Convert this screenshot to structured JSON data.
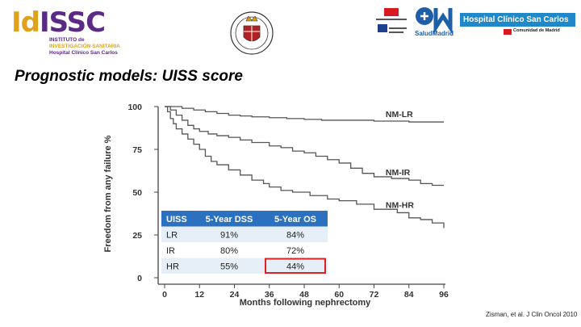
{
  "header": {
    "idissc": {
      "mark_a": "Id",
      "mark_b": "ISSC",
      "line1": "INSTITUTO de",
      "line2": "INVESTIGACIÓN SANITARIA",
      "line3": "Hospital Clínico San Carlos"
    },
    "madrid": {
      "salud": "SaludMadrid",
      "hospital": "Hospital Clínico San Carlos",
      "community": "Comunidad de Madrid"
    },
    "brand_colors": {
      "gold": "#e0a21a",
      "purple": "#5b2a86",
      "blue": "#1e88c8",
      "red": "#d71920"
    }
  },
  "slide": {
    "title": "Prognostic models: UISS score",
    "citation": "Zisman, et al. J Clin Oncol 2010"
  },
  "chart_data": {
    "type": "line",
    "subtype": "kaplan-meier",
    "xlabel": "Months following nephrectomy",
    "ylabel": "Freedom from any failure %",
    "xlim": [
      0,
      96
    ],
    "ylim": [
      0,
      100
    ],
    "xticks": [
      0,
      12,
      24,
      36,
      48,
      60,
      72,
      84,
      96
    ],
    "yticks": [
      0,
      25,
      50,
      75,
      100
    ],
    "grid": false,
    "series": [
      {
        "name": "NM-LR",
        "color": "#555555",
        "points": [
          [
            0,
            100
          ],
          [
            4,
            100
          ],
          [
            6,
            99
          ],
          [
            10,
            98
          ],
          [
            14,
            97
          ],
          [
            18,
            96
          ],
          [
            22,
            95
          ],
          [
            26,
            94.5
          ],
          [
            30,
            94
          ],
          [
            36,
            93.5
          ],
          [
            42,
            93
          ],
          [
            48,
            92.5
          ],
          [
            54,
            92
          ],
          [
            60,
            92
          ],
          [
            72,
            91.5
          ],
          [
            84,
            91
          ],
          [
            96,
            91
          ]
        ]
      },
      {
        "name": "NM-IR",
        "color": "#555555",
        "points": [
          [
            0,
            100
          ],
          [
            2,
            98
          ],
          [
            4,
            95
          ],
          [
            6,
            92
          ],
          [
            8,
            89
          ],
          [
            10,
            87
          ],
          [
            12,
            85.5
          ],
          [
            15,
            84
          ],
          [
            18,
            83
          ],
          [
            22,
            82
          ],
          [
            26,
            80.5
          ],
          [
            30,
            79
          ],
          [
            36,
            77
          ],
          [
            40,
            76
          ],
          [
            44,
            74
          ],
          [
            48,
            73
          ],
          [
            52,
            71
          ],
          [
            56,
            69
          ],
          [
            60,
            67
          ],
          [
            64,
            64
          ],
          [
            68,
            61
          ],
          [
            72,
            59
          ],
          [
            78,
            58
          ],
          [
            84,
            57
          ],
          [
            88,
            55
          ],
          [
            92,
            54
          ],
          [
            96,
            54
          ]
        ]
      },
      {
        "name": "NM-HR",
        "color": "#555555",
        "points": [
          [
            0,
            100
          ],
          [
            1,
            97
          ],
          [
            2,
            93
          ],
          [
            3,
            90
          ],
          [
            4,
            87
          ],
          [
            6,
            84
          ],
          [
            8,
            81
          ],
          [
            10,
            78
          ],
          [
            12,
            75
          ],
          [
            14,
            71
          ],
          [
            16,
            68
          ],
          [
            18,
            66
          ],
          [
            22,
            63
          ],
          [
            26,
            60
          ],
          [
            30,
            57
          ],
          [
            34,
            55
          ],
          [
            36,
            53
          ],
          [
            40,
            51
          ],
          [
            44,
            50
          ],
          [
            50,
            48
          ],
          [
            56,
            46
          ],
          [
            60,
            45
          ],
          [
            66,
            43
          ],
          [
            72,
            40
          ],
          [
            80,
            38
          ],
          [
            84,
            35
          ],
          [
            88,
            34
          ],
          [
            92,
            32
          ],
          [
            96,
            29
          ]
        ]
      }
    ],
    "table": {
      "header_color": "#2c70c0",
      "highlight_color": "#e02020",
      "columns": [
        "UISS",
        "5-Year DSS",
        "5-Year OS"
      ],
      "rows": [
        [
          "LR",
          "91%",
          "84%"
        ],
        [
          "IR",
          "80%",
          "72%"
        ],
        [
          "HR",
          "55%",
          "44%"
        ]
      ],
      "highlight": {
        "row": 2,
        "col": 2
      }
    }
  }
}
